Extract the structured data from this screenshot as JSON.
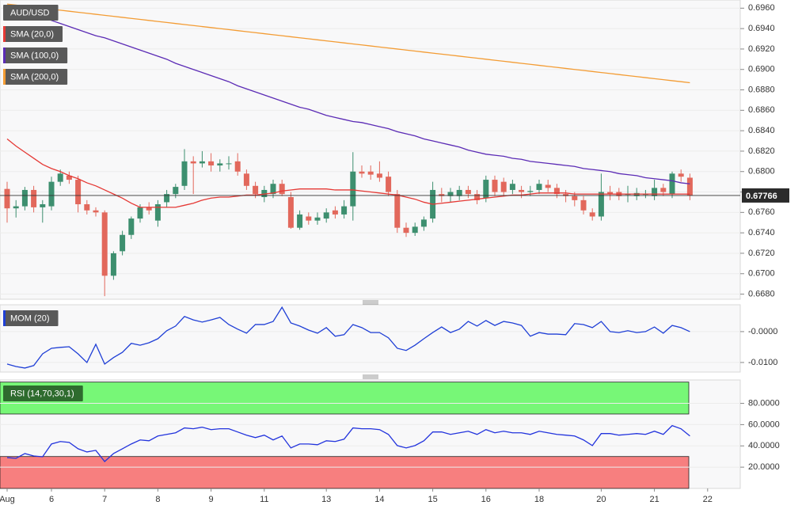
{
  "chart_data": [
    {
      "type": "candlestick",
      "title": "AUD/USD",
      "up_color": "#3d8f6f",
      "down_color": "#e2685c",
      "open": [
        0.6783,
        0.6764,
        0.6766,
        0.6782,
        0.6765,
        0.6766,
        0.679,
        0.6796,
        0.6792,
        0.6768,
        0.6762,
        0.676,
        0.6698,
        0.6722,
        0.6738,
        0.6754,
        0.6765,
        0.6752,
        0.677,
        0.6778,
        0.6786,
        0.681,
        0.6808,
        0.681,
        0.6806,
        0.6808,
        0.681,
        0.6798,
        0.6786,
        0.6775,
        0.6778,
        0.6788,
        0.6775,
        0.6745,
        0.6756,
        0.6752,
        0.6754,
        0.6762,
        0.6758,
        0.6766,
        0.68,
        0.68,
        0.6798,
        0.6795,
        0.6778,
        0.6745,
        0.674,
        0.6746,
        0.6754,
        0.6778,
        0.6776,
        0.6776,
        0.6782,
        0.6778,
        0.6774,
        0.6792,
        0.679,
        0.6782,
        0.6782,
        0.678,
        0.6782,
        0.6787,
        0.6784,
        0.6778,
        0.6776,
        0.6772,
        0.676,
        0.6756,
        0.678,
        0.678,
        0.6778,
        0.6776,
        0.6778,
        0.6776,
        0.6784,
        0.6778,
        0.6798,
        0.6794,
        null,
        null
      ],
      "high": [
        0.679,
        0.6772,
        0.6785,
        0.6786,
        0.6772,
        0.6795,
        0.6802,
        0.68,
        0.6796,
        0.6772,
        0.6765,
        0.6762,
        0.6722,
        0.6742,
        0.6756,
        0.6768,
        0.677,
        0.6772,
        0.6782,
        0.6788,
        0.6822,
        0.6815,
        0.682,
        0.6818,
        0.6812,
        0.6815,
        0.6818,
        0.6802,
        0.679,
        0.6786,
        0.6792,
        0.6792,
        0.678,
        0.6762,
        0.676,
        0.676,
        0.6764,
        0.6766,
        0.6772,
        0.6819,
        0.6806,
        0.6806,
        0.681,
        0.68,
        0.6782,
        0.675,
        0.675,
        0.6756,
        0.679,
        0.6784,
        0.6784,
        0.6786,
        0.6786,
        0.6782,
        0.6796,
        0.6796,
        0.6794,
        0.6792,
        0.6786,
        0.6786,
        0.6792,
        0.6792,
        0.6788,
        0.6782,
        0.678,
        0.6776,
        0.6764,
        0.6798,
        0.6786,
        0.6784,
        0.6786,
        0.6784,
        0.6782,
        0.6792,
        0.6788,
        0.68,
        0.6802,
        0.6798,
        null,
        null
      ],
      "low": [
        0.675,
        0.6755,
        0.6762,
        0.676,
        0.675,
        0.6762,
        0.6786,
        0.6788,
        0.676,
        0.6758,
        0.6756,
        0.6678,
        0.6694,
        0.6718,
        0.6734,
        0.675,
        0.6758,
        0.6746,
        0.6765,
        0.6774,
        0.6782,
        0.6778,
        0.6804,
        0.68,
        0.68,
        0.6802,
        0.6796,
        0.6782,
        0.6774,
        0.677,
        0.6774,
        0.6776,
        0.6744,
        0.6743,
        0.6748,
        0.6748,
        0.675,
        0.6754,
        0.6754,
        0.6752,
        0.6794,
        0.6792,
        0.679,
        0.6776,
        0.674,
        0.6736,
        0.6737,
        0.6742,
        0.675,
        0.677,
        0.677,
        0.6772,
        0.6774,
        0.6768,
        0.677,
        0.6776,
        0.6776,
        0.6778,
        0.6774,
        0.6776,
        0.6778,
        0.678,
        0.6774,
        0.677,
        0.6766,
        0.6758,
        0.6752,
        0.6752,
        0.6772,
        0.6772,
        0.677,
        0.6772,
        0.6774,
        0.6772,
        0.6776,
        0.6774,
        0.679,
        0.6772,
        null,
        null
      ],
      "close": [
        0.6764,
        0.6766,
        0.6782,
        0.6765,
        0.6768,
        0.679,
        0.6798,
        0.6792,
        0.6768,
        0.6762,
        0.676,
        0.6698,
        0.672,
        0.6738,
        0.6754,
        0.6765,
        0.6762,
        0.6768,
        0.6778,
        0.6785,
        0.681,
        0.6808,
        0.681,
        0.6806,
        0.6808,
        0.6808,
        0.68,
        0.6786,
        0.6778,
        0.6782,
        0.6788,
        0.6778,
        0.6745,
        0.6758,
        0.6752,
        0.6755,
        0.676,
        0.6758,
        0.6766,
        0.68,
        0.6798,
        0.6797,
        0.6794,
        0.678,
        0.6745,
        0.674,
        0.6746,
        0.6753,
        0.6782,
        0.6776,
        0.678,
        0.6782,
        0.6778,
        0.6772,
        0.6792,
        0.678,
        0.678,
        0.6788,
        0.678,
        0.6781,
        0.6788,
        0.6784,
        0.6778,
        0.6776,
        0.6772,
        0.6762,
        0.6756,
        0.678,
        0.6778,
        0.6776,
        0.6778,
        0.6779,
        0.6778,
        0.6784,
        0.678,
        0.6798,
        0.6795,
        0.67766,
        null,
        null
      ],
      "series": [
        {
          "name": "SMA (20,0)",
          "color": "#e53935",
          "values": [
            0.6832,
            0.6825,
            0.6819,
            0.6813,
            0.6807,
            0.6803,
            0.68,
            0.6796,
            0.6793,
            0.6789,
            0.6786,
            0.6782,
            0.6778,
            0.6774,
            0.6769,
            0.6765,
            0.6765,
            0.6765,
            0.6765,
            0.6765,
            0.6767,
            0.6769,
            0.6772,
            0.6774,
            0.6775,
            0.6775,
            0.6776,
            0.6777,
            0.6777,
            0.6778,
            0.6779,
            0.6781,
            0.6782,
            0.6783,
            0.6783,
            0.6783,
            0.6783,
            0.6782,
            0.6782,
            0.6782,
            0.6781,
            0.678,
            0.6779,
            0.6778,
            0.6777,
            0.6775,
            0.6773,
            0.677,
            0.6768,
            0.6769,
            0.677,
            0.6771,
            0.6772,
            0.6773,
            0.6774,
            0.6775,
            0.6776,
            0.6777,
            0.6777,
            0.6778,
            0.6779,
            0.6779,
            0.6779,
            0.6779,
            0.6778,
            0.6778,
            0.6778,
            0.6778,
            0.6778,
            0.6778,
            0.6778,
            0.6778,
            0.6778,
            0.6778,
            0.6778,
            0.6778,
            0.6778,
            0.6778,
            null,
            null
          ]
        },
        {
          "name": "SMA (100,0)",
          "color": "#5b2bb5",
          "values": [
            0.6962,
            0.6959,
            0.6956,
            0.6953,
            0.6951,
            0.6948,
            0.6945,
            0.6942,
            0.6939,
            0.6936,
            0.6933,
            0.6931,
            0.6928,
            0.6925,
            0.6922,
            0.6919,
            0.6916,
            0.6913,
            0.691,
            0.6906,
            0.6903,
            0.69,
            0.6897,
            0.6894,
            0.6891,
            0.6888,
            0.6884,
            0.6881,
            0.6878,
            0.6875,
            0.6872,
            0.6869,
            0.6866,
            0.6863,
            0.6861,
            0.6858,
            0.6855,
            0.6853,
            0.6851,
            0.6849,
            0.6848,
            0.6846,
            0.6844,
            0.6842,
            0.6839,
            0.6837,
            0.6835,
            0.6832,
            0.683,
            0.6828,
            0.6826,
            0.6824,
            0.6821,
            0.6819,
            0.6817,
            0.6816,
            0.6815,
            0.6813,
            0.6812,
            0.681,
            0.6809,
            0.6808,
            0.6807,
            0.6806,
            0.6805,
            0.6803,
            0.6802,
            0.6801,
            0.68,
            0.6798,
            0.6797,
            0.6796,
            0.6794,
            0.6793,
            0.6792,
            0.6791,
            0.6789,
            0.6788,
            null,
            null
          ]
        },
        {
          "name": "SMA (200,0)",
          "color": "#f39c34",
          "values": [
            0.6964,
            0.6963,
            0.6962,
            0.6961,
            0.696,
            0.6959,
            0.6958,
            0.6957,
            0.6956,
            0.6955,
            0.6954,
            0.6953,
            0.6952,
            0.6951,
            0.695,
            0.6949,
            0.6948,
            0.6947,
            0.6946,
            0.6945,
            0.6944,
            0.6943,
            0.6942,
            0.6941,
            0.694,
            0.6939,
            0.6938,
            0.6937,
            0.6936,
            0.6935,
            0.6934,
            0.6933,
            0.6932,
            0.6931,
            0.693,
            0.6929,
            0.6928,
            0.6927,
            0.6926,
            0.6925,
            0.6924,
            0.6923,
            0.6922,
            0.6921,
            0.692,
            0.6919,
            0.6918,
            0.6917,
            0.6916,
            0.6915,
            0.6914,
            0.6913,
            0.6912,
            0.6911,
            0.691,
            0.6909,
            0.6908,
            0.6907,
            0.6906,
            0.6905,
            0.6904,
            0.6903,
            0.6902,
            0.6901,
            0.69,
            0.6899,
            0.6898,
            0.6897,
            0.6896,
            0.6895,
            0.6894,
            0.6893,
            0.6892,
            0.6891,
            0.689,
            0.6889,
            0.6888,
            0.6887,
            null,
            null
          ]
        }
      ],
      "last_price": {
        "value": 0.67766,
        "label": "0.67766"
      },
      "ylim": [
        0.6675,
        0.6968
      ],
      "yticks": [
        {
          "value": 0.696,
          "label": "0.6960"
        },
        {
          "value": 0.694,
          "label": "0.6940"
        },
        {
          "value": 0.692,
          "label": "0.6920"
        },
        {
          "value": 0.69,
          "label": "0.6900"
        },
        {
          "value": 0.688,
          "label": "0.6880"
        },
        {
          "value": 0.686,
          "label": "0.6860"
        },
        {
          "value": 0.684,
          "label": "0.6840"
        },
        {
          "value": 0.682,
          "label": "0.6820"
        },
        {
          "value": 0.68,
          "label": "0.6800"
        },
        {
          "value": 0.678,
          "label": "0.6780"
        },
        {
          "value": 0.676,
          "label": "0.6760"
        },
        {
          "value": 0.674,
          "label": "0.6740"
        },
        {
          "value": 0.672,
          "label": "0.6720"
        },
        {
          "value": 0.67,
          "label": "0.6700"
        },
        {
          "value": 0.668,
          "label": "0.6680"
        }
      ]
    },
    {
      "type": "line",
      "series": [
        {
          "name": "MOM (20)",
          "color": "#1f3fd6",
          "values": [
            -0.0105,
            -0.0113,
            -0.0118,
            -0.011,
            -0.0072,
            -0.0054,
            -0.0051,
            -0.0049,
            -0.0072,
            -0.01,
            -0.0041,
            -0.0105,
            -0.0084,
            -0.0067,
            -0.0038,
            -0.0044,
            -0.0036,
            -0.0023,
            0.0003,
            0.0018,
            0.0049,
            0.0038,
            0.0031,
            0.0038,
            0.0046,
            0.0023,
            0.0008,
            -0.0005,
            0.0023,
            0.0023,
            0.0033,
            0.0079,
            0.0028,
            0.0018,
            0.0005,
            -0.0005,
            0.0013,
            -0.0015,
            -0.001,
            0.0023,
            0.0013,
            -0.0003,
            -0.0003,
            -0.002,
            -0.0054,
            -0.0061,
            -0.0044,
            -0.0023,
            -0.0003,
            0.0015,
            -0.0003,
            0.0008,
            0.0033,
            0.0018,
            0.0036,
            0.002,
            0.0033,
            0.0028,
            0.002,
            -0.0015,
            -0.0003,
            -0.0008,
            -0.0008,
            -0.001,
            0.0026,
            0.0023,
            0.0013,
            0.0033,
            0,
            -0.0003,
            0.0003,
            -0.0003,
            0,
            0.0015,
            -0.0005,
            0.002,
            0.0013,
            0,
            null,
            null
          ]
        }
      ],
      "ylim": [
        -0.0131,
        0.0087
      ],
      "yticks": [
        {
          "value": 0,
          "label": "-0.0000"
        },
        {
          "value": -0.01,
          "label": "-0.0100"
        }
      ]
    },
    {
      "type": "line",
      "series": [
        {
          "name": "RSI (14,70,30,1)",
          "color": "#2233dd",
          "values": [
            29.0,
            28.3,
            32.8,
            30.5,
            29.8,
            41.8,
            44.1,
            43.3,
            37.3,
            34.3,
            35.8,
            25.3,
            32.8,
            37.3,
            41.8,
            45.6,
            44.8,
            49.3,
            50.8,
            52.3,
            56.9,
            56.1,
            57.6,
            55.3,
            56.1,
            56.1,
            53.1,
            50.1,
            47.8,
            50.1,
            45.6,
            49.3,
            38.1,
            41.8,
            41.8,
            41.1,
            44.8,
            44.1,
            46.3,
            56.9,
            56.1,
            56.1,
            55.3,
            50.8,
            40.3,
            38.1,
            40.3,
            44.8,
            53.1,
            53.1,
            50.8,
            52.3,
            53.8,
            50.8,
            55.3,
            52.3,
            53.8,
            52.3,
            52.3,
            50.8,
            53.8,
            52.3,
            50.8,
            50.1,
            49.3,
            45.6,
            40.3,
            51.6,
            51.6,
            50.1,
            50.8,
            51.6,
            50.8,
            53.8,
            50.8,
            59.1,
            56.1,
            49.3,
            null,
            null
          ]
        }
      ],
      "bands": [
        {
          "range": [
            70,
            100
          ],
          "color": "#77f777"
        },
        {
          "range": [
            0,
            30
          ],
          "color": "#f77f7f"
        }
      ],
      "ylim": [
        0,
        102
      ],
      "yticks": [
        {
          "value": 80,
          "label": "80.0000"
        },
        {
          "value": 60,
          "label": "60.0000"
        },
        {
          "value": 40,
          "label": "40.0000"
        },
        {
          "value": 20,
          "label": "20.0000"
        }
      ],
      "categories": [
        "Aug",
        null,
        null,
        null,
        null,
        "6",
        null,
        null,
        null,
        null,
        null,
        "7",
        null,
        null,
        null,
        null,
        null,
        "8",
        null,
        null,
        null,
        null,
        null,
        "9",
        null,
        null,
        null,
        null,
        null,
        "11",
        null,
        null,
        null,
        null,
        null,
        null,
        "13",
        null,
        null,
        null,
        null,
        null,
        "14",
        null,
        null,
        null,
        null,
        null,
        "15",
        null,
        null,
        null,
        null,
        null,
        "16",
        null,
        null,
        null,
        null,
        null,
        "18",
        null,
        null,
        null,
        null,
        null,
        null,
        "20",
        null,
        null,
        null,
        null,
        null,
        "21",
        null,
        null,
        null,
        null,
        null,
        "22"
      ]
    }
  ]
}
